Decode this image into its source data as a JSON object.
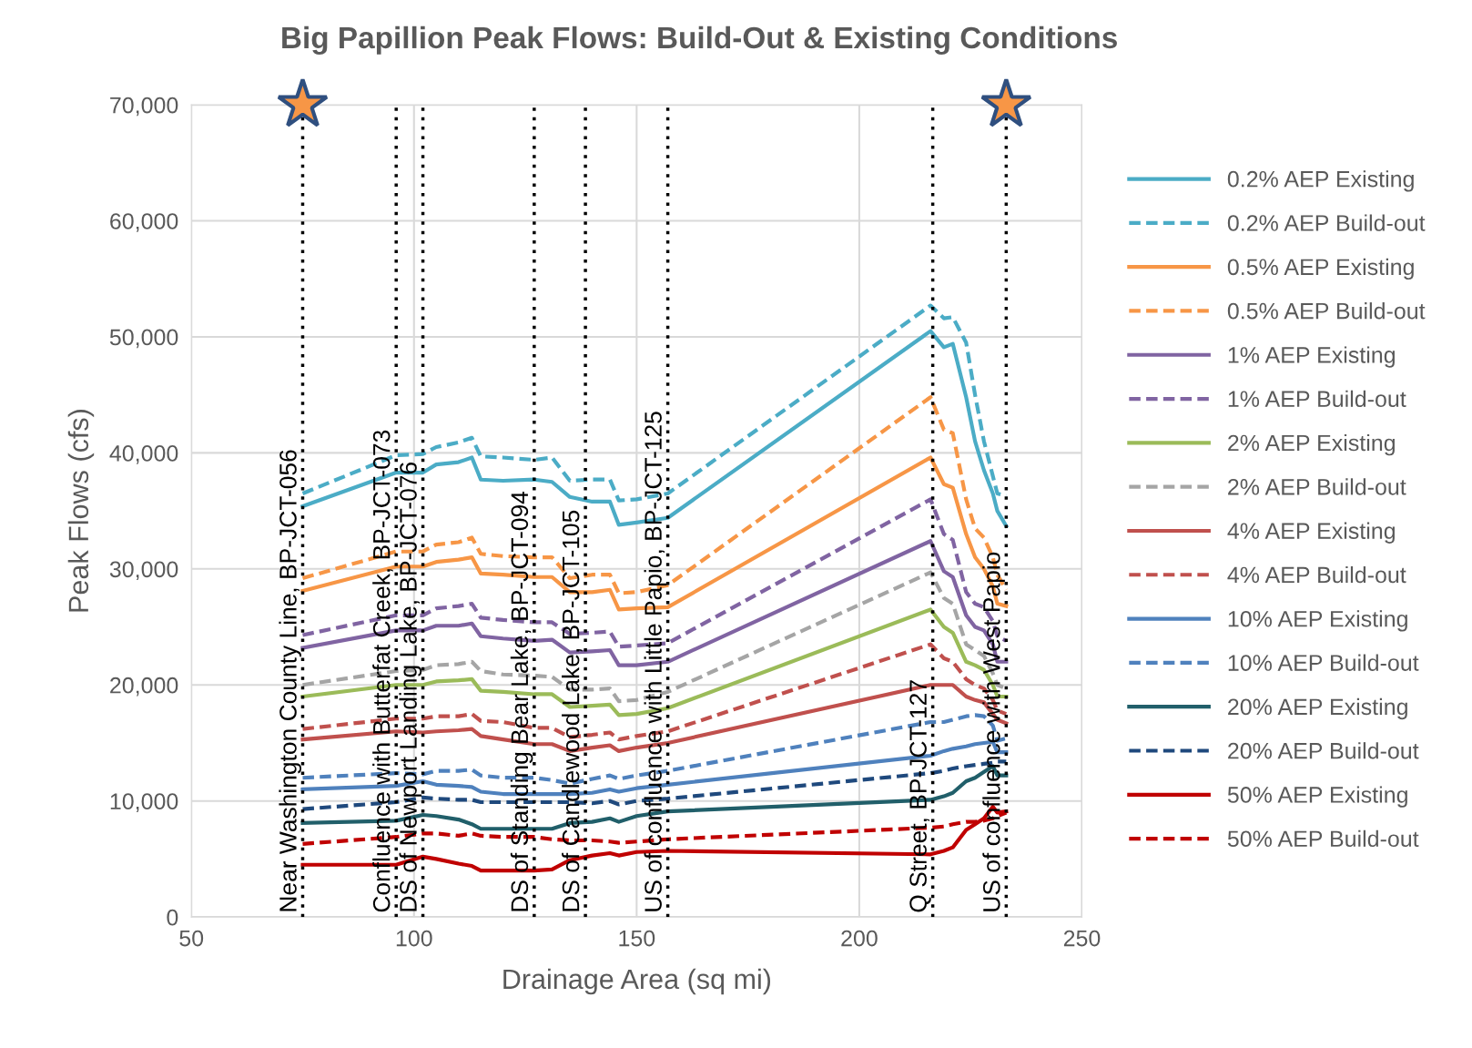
{
  "chart_data": {
    "type": "line",
    "title": "Big Papillion Peak Flows: Build-Out & Existing Conditions",
    "xlabel": "Drainage Area (sq mi)",
    "ylabel": "Peak Flows (cfs)",
    "x": [
      75,
      96,
      102,
      105,
      110,
      113,
      115,
      120,
      127,
      131,
      135,
      140,
      144,
      146,
      150,
      157,
      216,
      219,
      221,
      224,
      226,
      228,
      230,
      231,
      233
    ],
    "xlim": [
      50,
      250
    ],
    "xticks": [
      50,
      100,
      150,
      200,
      250
    ],
    "ylim": [
      0,
      70000
    ],
    "yticks": [
      0,
      {
        "value": 10000,
        "label": "10,000"
      },
      {
        "value": 20000,
        "label": "20,000"
      },
      {
        "value": 30000,
        "label": "30,000"
      },
      {
        "value": 40000,
        "label": "40,000"
      },
      {
        "value": 50000,
        "label": "50,000"
      },
      {
        "value": 60000,
        "label": "60,000"
      },
      {
        "value": 70000,
        "label": "70,000"
      }
    ],
    "grid": true,
    "legend": "right",
    "marker": "none",
    "series": [
      {
        "name": "0.2% AEP Existing",
        "color": "#4bacc6",
        "line_style": "solid",
        "values": [
          35400,
          38300,
          38300,
          39000,
          39200,
          39600,
          37700,
          37600,
          37700,
          37500,
          36200,
          35800,
          35800,
          33800,
          34000,
          34400,
          50500,
          49100,
          49400,
          44800,
          41000,
          38500,
          36500,
          35000,
          33700
        ]
      },
      {
        "name": "0.2% AEP Build-out",
        "color": "#4bacc6",
        "line_style": "dashed",
        "values": [
          36500,
          39800,
          39900,
          40500,
          40900,
          41300,
          39700,
          39600,
          39400,
          39600,
          37600,
          37700,
          37700,
          35900,
          36000,
          36500,
          52700,
          51600,
          51700,
          49500,
          45000,
          41000,
          38000,
          36500,
          36300
        ]
      },
      {
        "name": "0.5% AEP Existing",
        "color": "#f79646",
        "line_style": "solid",
        "values": [
          28100,
          30200,
          30200,
          30600,
          30800,
          31000,
          29600,
          29500,
          29300,
          29300,
          28000,
          28000,
          28200,
          26500,
          26600,
          26700,
          39600,
          37300,
          37000,
          33000,
          31000,
          30000,
          28500,
          27000,
          26800
        ]
      },
      {
        "name": "0.5% AEP Build-out",
        "color": "#f79646",
        "line_style": "dashed",
        "values": [
          29200,
          31500,
          31500,
          32100,
          32300,
          32700,
          31300,
          31100,
          31000,
          31000,
          29200,
          29500,
          29500,
          27900,
          28000,
          28600,
          44800,
          42000,
          41700,
          36000,
          33500,
          32700,
          31000,
          29500,
          28200
        ]
      },
      {
        "name": "1% AEP Existing",
        "color": "#8064a2",
        "line_style": "solid",
        "values": [
          23200,
          24700,
          24700,
          25100,
          25100,
          25300,
          24200,
          24000,
          23800,
          23900,
          22800,
          22900,
          23000,
          21700,
          21700,
          22000,
          32400,
          29800,
          29300,
          26000,
          25000,
          24700,
          23500,
          22000,
          22000
        ]
      },
      {
        "name": "1% AEP Build-out",
        "color": "#8064a2",
        "line_style": "dashed",
        "values": [
          24300,
          26000,
          26000,
          26600,
          26800,
          27000,
          25800,
          25600,
          25400,
          25400,
          24400,
          24500,
          24600,
          23300,
          23400,
          23600,
          36000,
          33000,
          32500,
          28000,
          27000,
          26700,
          25500,
          24200,
          23800
        ]
      },
      {
        "name": "2% AEP Existing",
        "color": "#9bbb59",
        "line_style": "solid",
        "values": [
          19000,
          20000,
          20000,
          20300,
          20400,
          20500,
          19500,
          19400,
          19200,
          19200,
          18100,
          18200,
          18300,
          17400,
          17500,
          18000,
          26500,
          25000,
          24500,
          22000,
          21700,
          21300,
          20000,
          19000,
          19000
        ]
      },
      {
        "name": "2% AEP Build-out",
        "color": "#a5a5a5",
        "line_style": "dashed",
        "values": [
          20000,
          21200,
          21300,
          21700,
          21800,
          22000,
          21200,
          20900,
          20800,
          20700,
          19600,
          19600,
          19700,
          18600,
          18700,
          19400,
          29700,
          27500,
          27000,
          23500,
          23000,
          22500,
          21000,
          20000,
          19700
        ]
      },
      {
        "name": "4% AEP Existing",
        "color": "#c0504d",
        "line_style": "solid",
        "values": [
          15300,
          16000,
          15900,
          16000,
          16100,
          16200,
          15600,
          15300,
          14900,
          14900,
          14300,
          14600,
          14800,
          14300,
          14600,
          15000,
          20000,
          20000,
          20000,
          19000,
          18700,
          18500,
          17500,
          17000,
          16700
        ]
      },
      {
        "name": "4% AEP Build-out",
        "color": "#c0504d",
        "line_style": "dashed",
        "values": [
          16200,
          17100,
          17100,
          17300,
          17300,
          17500,
          16900,
          16800,
          16300,
          16300,
          15500,
          15700,
          15900,
          15300,
          15600,
          16000,
          23500,
          22300,
          22000,
          20500,
          20000,
          19700,
          18700,
          17800,
          17500
        ]
      },
      {
        "name": "10% AEP Existing",
        "color": "#4f81bd",
        "line_style": "solid",
        "values": [
          11000,
          11300,
          11700,
          11400,
          11300,
          11200,
          10800,
          10600,
          10600,
          10600,
          10600,
          10700,
          11000,
          10800,
          11100,
          11400,
          13900,
          14300,
          14500,
          14700,
          14900,
          15000,
          15100,
          14200,
          14200
        ]
      },
      {
        "name": "10% AEP Build-out",
        "color": "#4f81bd",
        "line_style": "dashed",
        "values": [
          12000,
          12400,
          12300,
          12600,
          12600,
          12700,
          12200,
          12000,
          12000,
          11800,
          11500,
          11900,
          12200,
          11900,
          12200,
          12600,
          16800,
          16800,
          17000,
          17300,
          17400,
          17300,
          16500,
          15200,
          15400
        ]
      },
      {
        "name": "20% AEP Existing",
        "color": "#215f6a",
        "line_style": "solid",
        "values": [
          8100,
          8300,
          8800,
          8700,
          8400,
          8000,
          7600,
          7600,
          7600,
          7600,
          8100,
          8200,
          8500,
          8200,
          8700,
          9100,
          10100,
          10400,
          10700,
          11700,
          12000,
          12500,
          13000,
          12200,
          12200
        ]
      },
      {
        "name": "20% AEP Build-out",
        "color": "#1f497d",
        "line_style": "dashed",
        "values": [
          9300,
          9900,
          10300,
          10200,
          10100,
          10100,
          9900,
          9900,
          9900,
          9900,
          9900,
          9800,
          10000,
          9700,
          10000,
          10200,
          12400,
          12600,
          12800,
          13000,
          13100,
          13200,
          13300,
          13400,
          13400
        ]
      },
      {
        "name": "50% AEP Existing",
        "color": "#c00000",
        "line_style": "solid",
        "values": [
          4500,
          4500,
          5200,
          5000,
          4600,
          4400,
          4000,
          4000,
          4000,
          4100,
          4900,
          5300,
          5500,
          5300,
          5600,
          5700,
          5400,
          5700,
          6000,
          7500,
          8000,
          8500,
          9500,
          9000,
          9100
        ]
      },
      {
        "name": "50% AEP Build-out",
        "color": "#c00000",
        "line_style": "dashed",
        "values": [
          6300,
          6900,
          7200,
          7200,
          7000,
          7200,
          7000,
          6900,
          6900,
          6700,
          6600,
          6600,
          6500,
          6400,
          6500,
          6700,
          7700,
          7800,
          8000,
          8200,
          8200,
          8300,
          8500,
          8700,
          9000
        ]
      }
    ],
    "ref_lines": [
      {
        "axis": "x",
        "value": 75,
        "label": "Near Washington County Line, BP-JCT-056",
        "color": "#000000",
        "line_style": "dotted"
      },
      {
        "axis": "x",
        "value": 96,
        "label": "Confluence with Butterfat Creek, BP-JCT-073",
        "color": "#000000",
        "line_style": "dotted"
      },
      {
        "axis": "x",
        "value": 102,
        "label": "DS of Newport Landing Lake, BP-JCT-076",
        "color": "#000000",
        "line_style": "dotted"
      },
      {
        "axis": "x",
        "value": 127,
        "label": "DS of Standing Bear Lake, BP-JCT-094",
        "color": "#000000",
        "line_style": "dotted"
      },
      {
        "axis": "x",
        "value": 138.5,
        "label": "DS of Candlewood Lake, BP-JCT-105",
        "color": "#000000",
        "line_style": "dotted"
      },
      {
        "axis": "x",
        "value": 157,
        "label": "US of confluence with Little Papio, BP-JCT-125",
        "color": "#000000",
        "line_style": "dotted"
      },
      {
        "axis": "x",
        "value": 216.5,
        "label": "Q Street, BP-JCT-127",
        "color": "#000000",
        "line_style": "dotted"
      },
      {
        "axis": "x",
        "value": 233,
        "label": "US of confluence with West Papio",
        "color": "#000000",
        "line_style": "dotted"
      }
    ]
  }
}
